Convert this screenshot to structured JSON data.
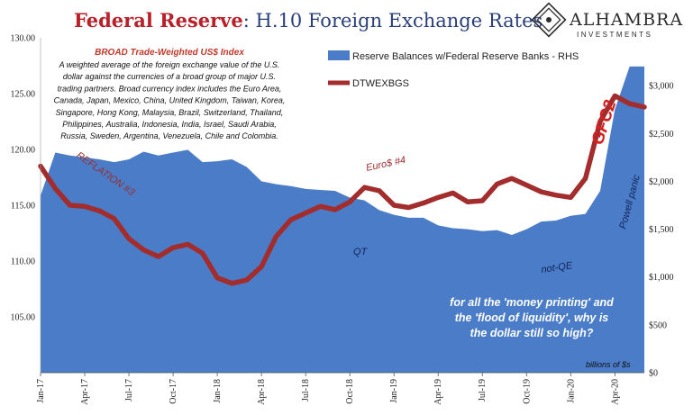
{
  "header": {
    "title_emphasis": "Federal Reserve",
    "title_rest": ": H.10 Foreign Exchange Rates"
  },
  "logo": {
    "name": "ALHAMBRA",
    "subtitle": "INVESTMENTS"
  },
  "note": {
    "heading": "BROAD Trade-Weighted US$ Index",
    "lines": [
      "A weighted average of the foreign exchange value of the U.S.",
      "dollar against the currencies of a broad group of major U.S.",
      "trading partners. Broad currency index includes the Euro Area,",
      "Canada, Japan, Mexico, China, United Kingdom, Taiwan, Korea,",
      "Singapore, Hong Kong, Malaysia, Brazil, Switzerland, Thailand,",
      "Philippines, Australia, Indonesia, India, Israel, Saudi Arabia,",
      "Russia, Sweden, Argentina, Venezuela, Chile and Colombia."
    ]
  },
  "annotations": {
    "reflation": "REFLATION #3",
    "euro": "Euro$ #4",
    "gfc2": "GFC2",
    "qt": "QT",
    "not_qe": "not-QE",
    "powell": "Powell panic",
    "question_lines": [
      "for all the 'money printing' and",
      "the 'flood of liquidity', why is",
      "the dollar still so high?"
    ],
    "units": "billions of $s"
  },
  "colors": {
    "area": "#4a7cc7",
    "line": "#a32d2d",
    "title_red": "#b8202a",
    "title_blue": "#2a3f7a"
  },
  "chart_data": {
    "type": "line",
    "x_ticks": [
      "Jan-17",
      "Apr-17",
      "Jul-17",
      "Oct-17",
      "Jan-18",
      "Apr-18",
      "Jul-18",
      "Oct-18",
      "Jan-19",
      "Apr-19",
      "Jul-19",
      "Oct-19",
      "Jan-20",
      "Apr-20"
    ],
    "x_range": [
      "2017-01",
      "2020-06"
    ],
    "y_left": {
      "ticks": [
        "105.00",
        "110.00",
        "115.00",
        "120.00",
        "125.00",
        "130.00"
      ],
      "range": [
        100,
        130
      ]
    },
    "y_right": {
      "ticks": [
        "$0",
        "$500",
        "$1,000",
        "$1,500",
        "$2,000",
        "$2,500",
        "$3,000"
      ],
      "range": [
        0,
        3500
      ]
    },
    "series": [
      {
        "name": "Reserve Balances w/Federal Reserve Banks - RHS",
        "kind": "area",
        "axis": "right",
        "x": [
          "2017-01",
          "2017-02",
          "2017-03",
          "2017-04",
          "2017-05",
          "2017-06",
          "2017-07",
          "2017-08",
          "2017-09",
          "2017-10",
          "2017-11",
          "2017-12",
          "2018-01",
          "2018-02",
          "2018-03",
          "2018-04",
          "2018-05",
          "2018-06",
          "2018-07",
          "2018-08",
          "2018-09",
          "2018-10",
          "2018-11",
          "2018-12",
          "2019-01",
          "2019-02",
          "2019-03",
          "2019-04",
          "2019-05",
          "2019-06",
          "2019-07",
          "2019-08",
          "2019-09",
          "2019-10",
          "2019-11",
          "2019-12",
          "2020-01",
          "2020-02",
          "2020-03",
          "2020-04",
          "2020-05",
          "2020-06"
        ],
        "values": [
          1850,
          2300,
          2270,
          2250,
          2230,
          2200,
          2230,
          2310,
          2270,
          2300,
          2330,
          2200,
          2210,
          2230,
          2150,
          2000,
          1970,
          1950,
          1920,
          1910,
          1900,
          1830,
          1800,
          1700,
          1650,
          1620,
          1620,
          1540,
          1510,
          1500,
          1480,
          1490,
          1440,
          1500,
          1580,
          1590,
          1640,
          1660,
          1900,
          2750,
          3200,
          3200
        ]
      },
      {
        "name": "DTWEXBGS",
        "kind": "line",
        "axis": "left",
        "x": [
          "2017-01",
          "2017-02",
          "2017-03",
          "2017-04",
          "2017-05",
          "2017-06",
          "2017-07",
          "2017-08",
          "2017-09",
          "2017-10",
          "2017-11",
          "2017-12",
          "2018-01",
          "2018-02",
          "2018-03",
          "2018-04",
          "2018-05",
          "2018-06",
          "2018-07",
          "2018-08",
          "2018-09",
          "2018-10",
          "2018-11",
          "2018-12",
          "2019-01",
          "2019-02",
          "2019-03",
          "2019-04",
          "2019-05",
          "2019-06",
          "2019-07",
          "2019-08",
          "2019-09",
          "2019-10",
          "2019-11",
          "2019-12",
          "2020-01",
          "2020-02",
          "2020-03",
          "2020-04",
          "2020-05",
          "2020-06"
        ],
        "values": [
          118.5,
          116.5,
          115.0,
          114.9,
          114.5,
          113.8,
          112.0,
          111.0,
          110.4,
          111.2,
          111.5,
          110.7,
          108.5,
          108.0,
          108.3,
          109.5,
          112.2,
          113.7,
          114.3,
          114.9,
          114.6,
          115.3,
          116.6,
          116.3,
          115.0,
          114.8,
          115.2,
          115.7,
          116.1,
          115.3,
          115.4,
          116.9,
          117.4,
          116.8,
          116.2,
          115.9,
          115.7,
          117.4,
          122.5,
          124.8,
          124.1,
          123.8
        ]
      }
    ]
  }
}
